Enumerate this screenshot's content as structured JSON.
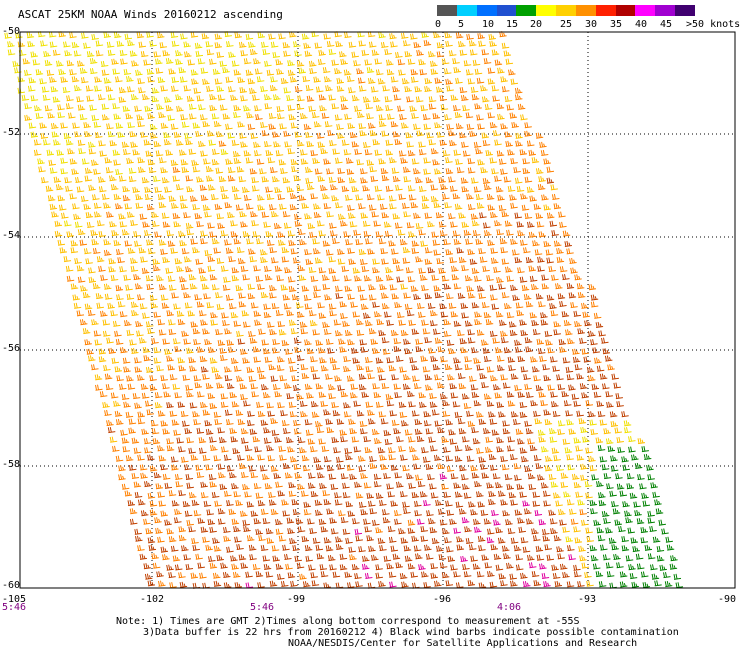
{
  "title": "ASCAT 25KM NOAA Winds 20160212 ascending",
  "colorbar": {
    "colors": [
      "#555555",
      "#00cfff",
      "#0070ff",
      "#2050d0",
      "#00a000",
      "#ffff00",
      "#ffd000",
      "#ff9000",
      "#ff2000",
      "#b00000",
      "#ff00ff",
      "#a000d0",
      "#400070"
    ],
    "labels": [
      "0",
      "5",
      "10",
      "15",
      "20",
      "25",
      "30",
      "35",
      "40",
      "45",
      ">50 knots"
    ]
  },
  "latitudes": [
    "-50",
    "-52",
    "-54",
    "-56",
    "-58",
    "-60"
  ],
  "longitudes": [
    "-105",
    "-102",
    "-99",
    "-96",
    "-93",
    "-90"
  ],
  "times": [
    "5:46",
    "5:46",
    "4:06"
  ],
  "notes": {
    "line1": "Note: 1) Times are GMT 2)Times along bottom correspond to measurement at -55S",
    "line2": "3)Data buffer is 22 hrs from 20160212 4) Black wind barbs indicate possible contamination",
    "line3": "NOAA/NESDIS/Center for Satellite Applications and Research"
  },
  "legend_colors": {
    "speed_20_25": "#f0e000",
    "speed_25_30": "#ffc000",
    "speed_30_35": "#ff8000",
    "speed_35_40": "#c04000",
    "speed_45_50": "#e000a0",
    "speed_15_20": "#008000"
  }
}
